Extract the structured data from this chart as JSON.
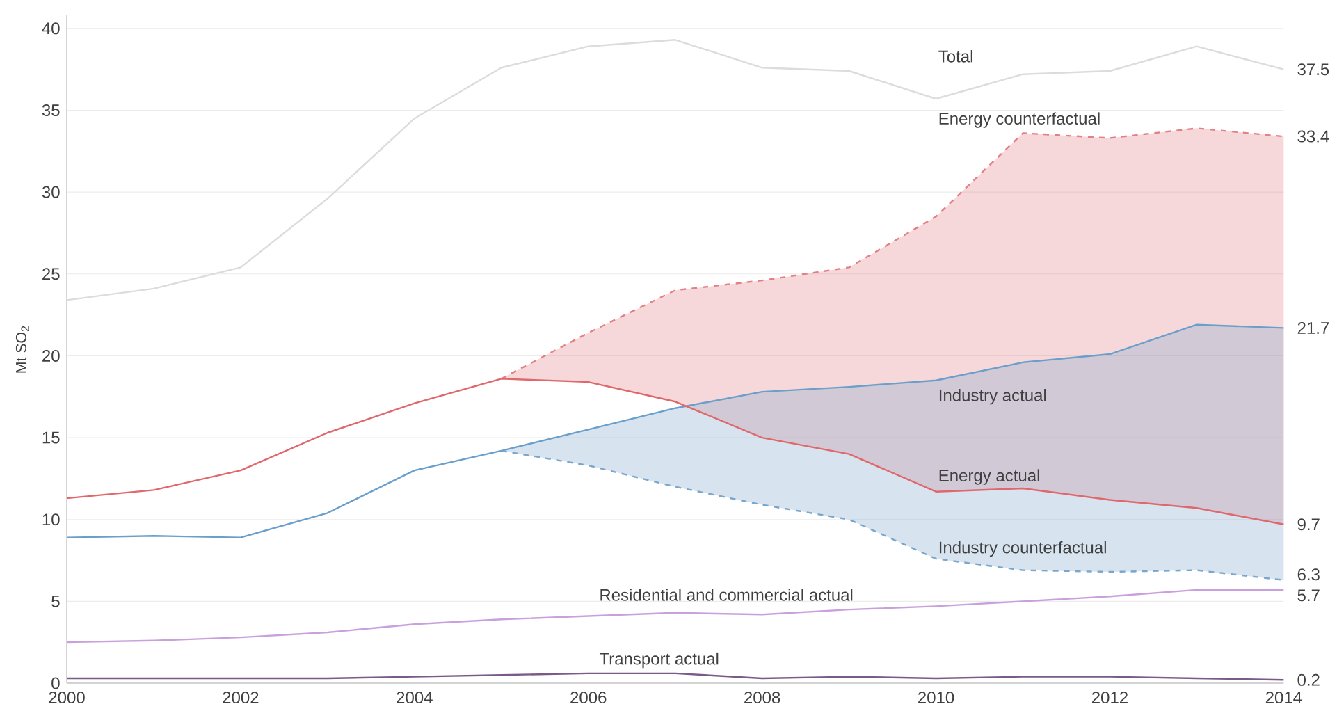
{
  "chart_data": {
    "type": "line",
    "ylabel": "Mt SO$_{2}$",
    "x": [
      2000,
      2001,
      2002,
      2003,
      2004,
      2005,
      2006,
      2007,
      2008,
      2009,
      2010,
      2011,
      2012,
      2013,
      2014
    ],
    "series": [
      {
        "name": "Total",
        "color": "#dcdcdc",
        "values": [
          23.4,
          24.1,
          25.4,
          29.6,
          34.5,
          37.6,
          38.9,
          39.3,
          37.6,
          37.4,
          35.7,
          37.2,
          37.4,
          38.9,
          37.5
        ],
        "value_labels": [
          null,
          null,
          null,
          null,
          null,
          null,
          null,
          null,
          null,
          null,
          null,
          null,
          null,
          null,
          "37.5"
        ]
      },
      {
        "name": "Energy counterfactual",
        "color": "#e47f83",
        "line_style": "dashed",
        "values": [
          null,
          null,
          null,
          null,
          null,
          18.6,
          21.4,
          24.0,
          24.6,
          25.4,
          28.5,
          33.6,
          33.3,
          33.9,
          33.4
        ],
        "lower": [
          null,
          null,
          null,
          null,
          null,
          18.6,
          18.4,
          17.2,
          15.0,
          14.0,
          11.7,
          11.9,
          11.2,
          10.7,
          9.7
        ],
        "upper": [
          null,
          null,
          null,
          null,
          null,
          18.6,
          21.4,
          24.0,
          24.6,
          25.4,
          28.5,
          33.6,
          33.3,
          33.9,
          33.4
        ],
        "value_labels": [
          null,
          null,
          null,
          null,
          null,
          null,
          null,
          null,
          null,
          null,
          null,
          null,
          null,
          null,
          "33.4"
        ]
      },
      {
        "name": "Industry actual",
        "color": "#6a9fcb",
        "values": [
          8.9,
          9.0,
          8.9,
          10.4,
          13.0,
          14.2,
          15.5,
          16.8,
          17.8,
          18.1,
          18.5,
          19.6,
          20.1,
          21.9,
          21.7
        ],
        "value_labels": [
          null,
          null,
          null,
          null,
          null,
          null,
          null,
          null,
          null,
          null,
          null,
          null,
          null,
          null,
          "21.7"
        ]
      },
      {
        "name": "Energy actual",
        "color": "#e0676b",
        "values": [
          11.3,
          11.8,
          13.0,
          15.3,
          17.1,
          18.6,
          18.4,
          17.2,
          15.0,
          14.0,
          11.7,
          11.9,
          11.2,
          10.7,
          9.7
        ],
        "value_labels": [
          null,
          null,
          null,
          null,
          null,
          null,
          null,
          null,
          null,
          null,
          null,
          null,
          null,
          null,
          "9.7"
        ]
      },
      {
        "name": "Industry counterfactual",
        "color": "#7aa6cc",
        "line_style": "dashed",
        "values": [
          null,
          null,
          null,
          null,
          null,
          14.2,
          13.3,
          12.0,
          10.9,
          10.0,
          7.6,
          6.9,
          6.8,
          6.9,
          6.3
        ],
        "lower": [
          null,
          null,
          null,
          null,
          null,
          14.2,
          13.3,
          12.0,
          10.9,
          10.0,
          7.6,
          6.9,
          6.8,
          6.9,
          6.3
        ],
        "upper": [
          null,
          null,
          null,
          null,
          null,
          14.2,
          15.5,
          16.8,
          17.8,
          18.1,
          18.5,
          19.6,
          20.1,
          21.9,
          21.7
        ],
        "value_labels": [
          null,
          null,
          null,
          null,
          null,
          null,
          null,
          null,
          null,
          null,
          null,
          null,
          null,
          null,
          "6.3"
        ]
      },
      {
        "name": "Residential and commercial actual",
        "color": "#c9a0de",
        "values": [
          2.5,
          2.6,
          2.8,
          3.1,
          3.6,
          3.9,
          4.1,
          4.3,
          4.2,
          4.5,
          4.7,
          5.0,
          5.3,
          5.7,
          5.7
        ],
        "value_labels": [
          null,
          null,
          null,
          null,
          null,
          null,
          null,
          null,
          null,
          null,
          null,
          null,
          null,
          null,
          "5.7"
        ]
      },
      {
        "name": "Transport actual",
        "color": "#7a5a86",
        "values": [
          0.3,
          0.3,
          0.3,
          0.3,
          0.4,
          0.5,
          0.6,
          0.6,
          0.3,
          0.4,
          0.3,
          0.4,
          0.4,
          0.3,
          0.2
        ],
        "value_labels": [
          null,
          null,
          null,
          null,
          null,
          null,
          null,
          null,
          null,
          null,
          null,
          null,
          null,
          null,
          "0.2"
        ]
      }
    ],
    "xlim": [
      2000,
      2014
    ],
    "ylim": [
      0,
      40.8
    ],
    "xticks": [
      2000,
      2002,
      2004,
      2006,
      2008,
      2010,
      2012,
      2014
    ],
    "yticks": [
      0,
      5,
      10,
      15,
      20,
      25,
      30,
      35,
      40
    ],
    "grid": "y"
  }
}
